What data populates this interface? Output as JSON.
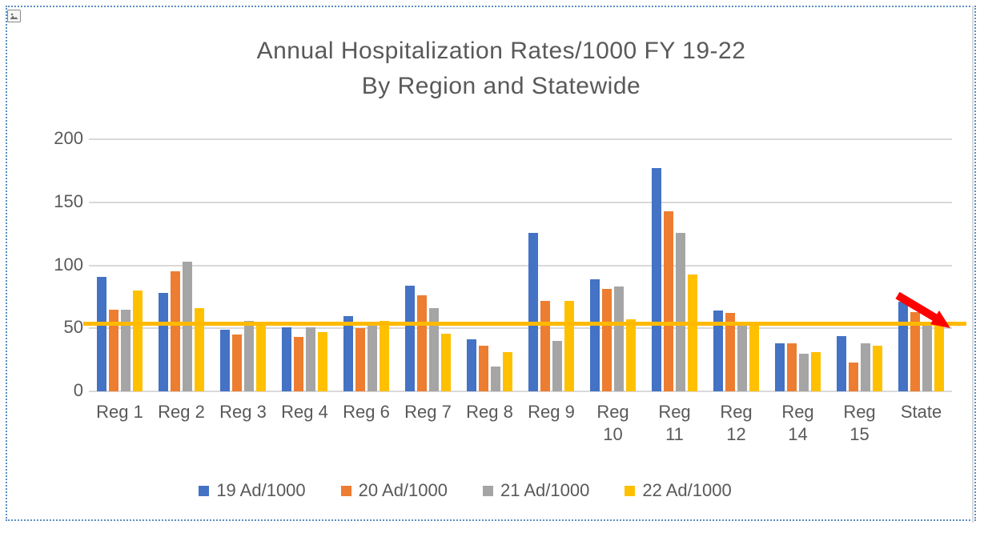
{
  "document": {
    "object_type": "embedded-picture-selected",
    "selection_border_color": "#5b8ec4",
    "picture_icon": "picture-icon"
  },
  "chart_data": {
    "type": "bar",
    "title_line1": "Annual Hospitalization Rates/1000 FY 19-22",
    "title_line2": "By Region and Statewide",
    "categories": [
      "Reg 1",
      "Reg 2",
      "Reg 3",
      "Reg 4",
      "Reg 6",
      "Reg 7",
      "Reg 8",
      "Reg 9",
      "Reg 10",
      "Reg 11",
      "Reg 12",
      "Reg 14",
      "Reg 15",
      "State"
    ],
    "category_label_lines": [
      [
        "Reg 1"
      ],
      [
        "Reg 2"
      ],
      [
        "Reg 3"
      ],
      [
        "Reg 4"
      ],
      [
        "Reg 6"
      ],
      [
        "Reg 7"
      ],
      [
        "Reg 8"
      ],
      [
        "Reg 9"
      ],
      [
        "Reg",
        "10"
      ],
      [
        "Reg",
        "11"
      ],
      [
        "Reg",
        "12"
      ],
      [
        "Reg",
        "14"
      ],
      [
        "Reg",
        "15"
      ],
      [
        "State"
      ]
    ],
    "series": [
      {
        "name": "19 Ad/1000",
        "color": "#4472C4",
        "values": [
          91,
          78,
          49,
          51,
          60,
          84,
          41,
          126,
          89,
          177,
          64,
          38,
          44,
          71
        ]
      },
      {
        "name": "20 Ad/1000",
        "color": "#ED7D31",
        "values": [
          65,
          95,
          45,
          43,
          50,
          76,
          36,
          72,
          81,
          143,
          62,
          38,
          23,
          63
        ]
      },
      {
        "name": "21 Ad/1000",
        "color": "#A5A5A5",
        "values": [
          65,
          103,
          56,
          51,
          52,
          66,
          20,
          40,
          83,
          126,
          53,
          30,
          38,
          55
        ]
      },
      {
        "name": "22 Ad/1000",
        "color": "#FFC000",
        "values": [
          80,
          66,
          55,
          47,
          56,
          46,
          31,
          72,
          57,
          93,
          54,
          31,
          36,
          52
        ]
      }
    ],
    "y_ticks": [
      200,
      150,
      100,
      50,
      0
    ],
    "ylim": [
      0,
      200
    ],
    "grid": true,
    "gridline_color": "#d9d9d9",
    "legend_position": "bottom",
    "reference_line": {
      "value": 54,
      "color": "#FFB900"
    },
    "annotation": {
      "type": "down-trend-arrow",
      "color": "#FF0000",
      "location": "State group"
    }
  }
}
